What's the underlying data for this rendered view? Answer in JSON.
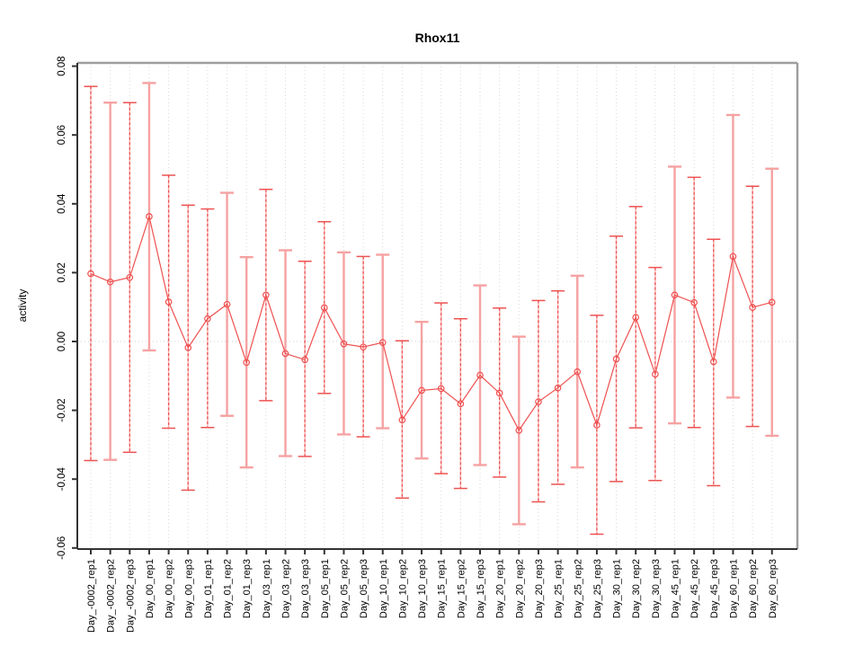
{
  "title": "Rhox11",
  "ylabel": "activity",
  "colors": {
    "point_line": "#ef5050",
    "whisker_solid": "#f6a2a2",
    "whisker_dash_base": "#f9b8b8",
    "whisker_dash_overlay": "#ee5252",
    "grid": "#d9d9d9",
    "zero_line": "#cfcfcf",
    "axis_dark": "#333333",
    "box_gray": "#9e9e9e",
    "tick_label": "#000000"
  },
  "chart_data": {
    "type": "scatter",
    "title": "Rhox11",
    "xlabel": "",
    "ylabel": "activity",
    "ylim": [
      -0.06,
      0.08
    ],
    "yticks": [
      -0.06,
      -0.04,
      -0.02,
      0.0,
      0.02,
      0.04,
      0.06,
      0.08
    ],
    "grid": "dotted vertical gridline at every category; dotted horizontal line at y=0",
    "legend_position": "none",
    "marker": "open-circle",
    "error_bars": true,
    "categories": [
      "Day_-0002_rep1",
      "Day_-0002_rep2",
      "Day_-0002_rep3",
      "Day_00_rep1",
      "Day_00_rep2",
      "Day_00_rep3",
      "Day_01_rep1",
      "Day_01_rep2",
      "Day_01_rep3",
      "Day_03_rep1",
      "Day_03_rep2",
      "Day_03_rep3",
      "Day_05_rep1",
      "Day_05_rep2",
      "Day_05_rep3",
      "Day_10_rep1",
      "Day_10_rep2",
      "Day_10_rep3",
      "Day_15_rep1",
      "Day_15_rep2",
      "Day_15_rep3",
      "Day_20_rep1",
      "Day_20_rep2",
      "Day_20_rep3",
      "Day_25_rep1",
      "Day_25_rep2",
      "Day_25_rep3",
      "Day_30_rep1",
      "Day_30_rep2",
      "Day_30_rep3",
      "Day_45_rep1",
      "Day_45_rep2",
      "Day_45_rep3",
      "Day_60_rep1",
      "Day_60_rep2",
      "Day_60_rep3"
    ],
    "series": [
      {
        "name": "activity",
        "values": [
          0.0197,
          0.0173,
          0.0186,
          0.0363,
          0.0115,
          -0.0018,
          0.0066,
          0.0108,
          -0.0061,
          0.0135,
          -0.0035,
          -0.0053,
          0.0098,
          -0.0007,
          -0.0016,
          -0.0003,
          -0.0228,
          -0.0142,
          -0.0137,
          -0.0181,
          -0.0098,
          -0.015,
          -0.0258,
          -0.0175,
          -0.0135,
          -0.0088,
          -0.0243,
          -0.0051,
          0.007,
          -0.0095,
          0.0135,
          0.0113,
          -0.0059,
          0.0247,
          0.0099,
          0.0114
        ],
        "upper": [
          0.0741,
          0.0694,
          0.0694,
          0.0751,
          0.0483,
          0.0396,
          0.0385,
          0.0432,
          0.0245,
          0.0442,
          0.0265,
          0.0233,
          0.0348,
          0.0259,
          0.0247,
          0.0252,
          0.0002,
          0.0057,
          0.0112,
          0.0066,
          0.0163,
          0.0097,
          0.0014,
          0.0119,
          0.0147,
          0.0191,
          0.0076,
          0.0306,
          0.0392,
          0.0215,
          0.0508,
          0.0477,
          0.0297,
          0.0658,
          0.0451,
          0.0502
        ],
        "lower": [
          -0.0346,
          -0.0344,
          -0.0322,
          -0.0026,
          -0.0252,
          -0.0432,
          -0.025,
          -0.0216,
          -0.0366,
          -0.0172,
          -0.0333,
          -0.0334,
          -0.0151,
          -0.027,
          -0.0277,
          -0.0252,
          -0.0455,
          -0.034,
          -0.0384,
          -0.0427,
          -0.0359,
          -0.0394,
          -0.0531,
          -0.0466,
          -0.0415,
          -0.0366,
          -0.056,
          -0.0407,
          -0.0251,
          -0.0404,
          -0.0238,
          -0.025,
          -0.0419,
          -0.0163,
          -0.0247,
          -0.0274
        ],
        "whisker_style": [
          "dashed",
          "solid",
          "dashed",
          "solid",
          "dashed",
          "dashed",
          "dashed",
          "solid",
          "solid",
          "dashed",
          "solid",
          "dashed",
          "dashed",
          "solid",
          "dashed",
          "solid",
          "dashed",
          "solid",
          "dashed",
          "dashed",
          "solid",
          "dashed",
          "solid",
          "dashed",
          "dashed",
          "solid",
          "dashed",
          "dashed",
          "dashed",
          "dashed",
          "solid",
          "dashed",
          "dashed",
          "solid",
          "dashed",
          "solid"
        ]
      }
    ]
  }
}
